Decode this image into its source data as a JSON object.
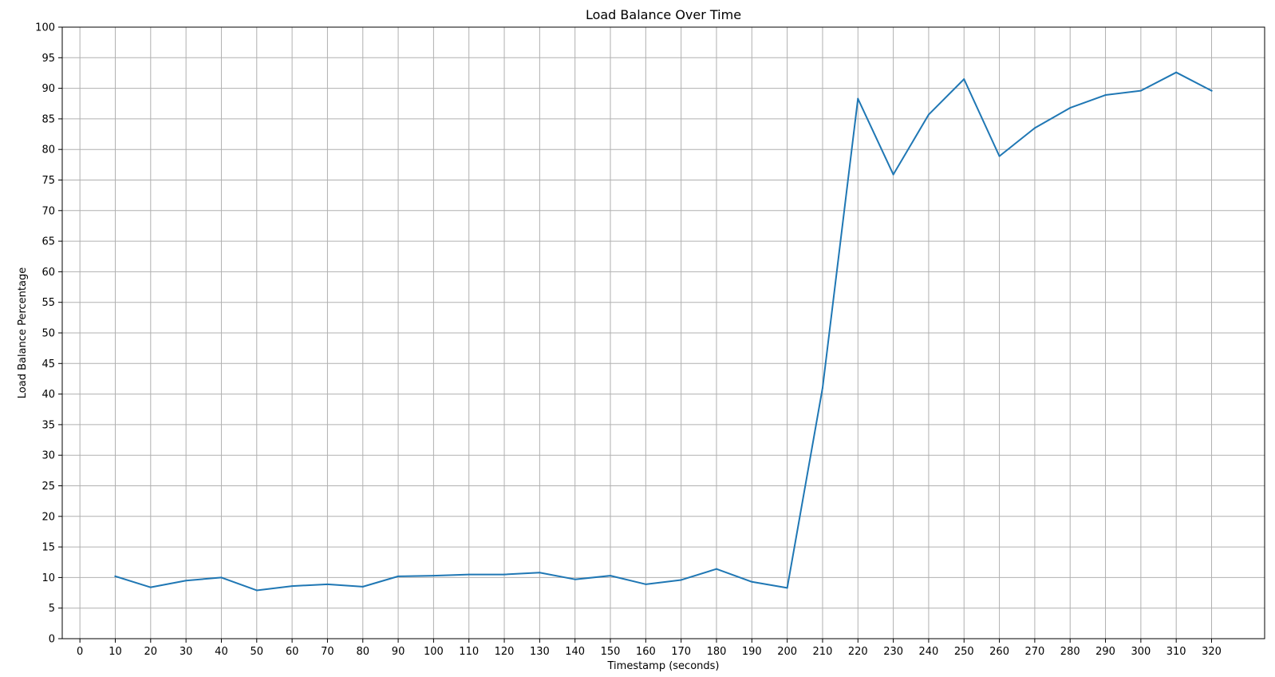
{
  "chart_data": {
    "type": "line",
    "title": "Load Balance Over Time",
    "xlabel": "Timestamp (seconds)",
    "ylabel": "Load Balance Percentage",
    "xlim": [
      -5,
      335
    ],
    "ylim": [
      0,
      100
    ],
    "x_ticks": [
      0,
      10,
      20,
      30,
      40,
      50,
      60,
      70,
      80,
      90,
      100,
      110,
      120,
      130,
      140,
      150,
      160,
      170,
      180,
      190,
      200,
      210,
      220,
      230,
      240,
      250,
      260,
      270,
      280,
      290,
      300,
      310,
      320
    ],
    "y_ticks": [
      0,
      5,
      10,
      15,
      20,
      25,
      30,
      35,
      40,
      45,
      50,
      55,
      60,
      65,
      70,
      75,
      80,
      85,
      90,
      95,
      100
    ],
    "grid": true,
    "series": [
      {
        "color": "#1f77b4",
        "x": [
          10,
          20,
          30,
          40,
          50,
          60,
          70,
          80,
          90,
          100,
          110,
          120,
          130,
          140,
          150,
          160,
          170,
          180,
          190,
          200,
          210,
          220,
          230,
          240,
          250,
          260,
          270,
          280,
          290,
          300,
          310,
          320
        ],
        "y": [
          10.2,
          8.4,
          9.5,
          10.0,
          7.9,
          8.6,
          8.9,
          8.5,
          10.2,
          10.3,
          10.5,
          10.5,
          10.8,
          9.7,
          10.3,
          8.9,
          9.6,
          11.4,
          9.3,
          8.3,
          41.0,
          88.3,
          75.9,
          85.7,
          91.5,
          78.9,
          83.5,
          86.8,
          88.9,
          89.6,
          92.6,
          89.6
        ]
      }
    ]
  }
}
